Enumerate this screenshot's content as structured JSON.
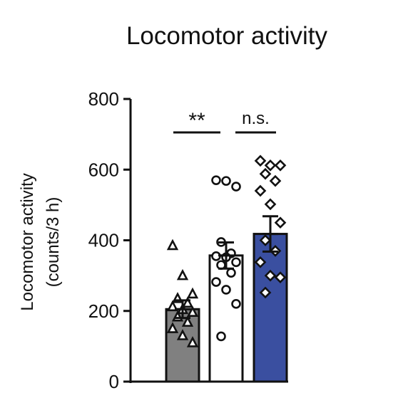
{
  "chart_data": {
    "type": "bar",
    "title": "Locomotor activity",
    "ylabel_line1": "Locomotor activity",
    "ylabel_line2": "(counts/3 h)",
    "ylim": [
      0,
      800
    ],
    "yticks": [
      0,
      200,
      400,
      600,
      800
    ],
    "ytick_labels": [
      "0",
      "200",
      "400",
      "600",
      "800"
    ],
    "grid": false,
    "legend": "none",
    "categories": [
      "",
      "",
      ""
    ],
    "series": [
      {
        "values": [
          205,
          357,
          418
        ],
        "sem": [
          25,
          37,
          50
        ],
        "fill_colors": [
          "#808080",
          "#ffffff",
          "#3a4fa0"
        ],
        "markers": [
          "triangle",
          "circle",
          "diamond"
        ]
      }
    ],
    "points": [
      [
        385,
        300,
        248,
        235,
        222,
        212,
        204,
        196,
        183,
        168,
        150,
        130,
        110
      ],
      [
        570,
        568,
        552,
        395,
        363,
        355,
        352,
        338,
        330,
        308,
        282,
        260,
        220,
        128
      ],
      [
        625,
        612,
        612,
        588,
        568,
        540,
        502,
        450,
        400,
        370,
        338,
        300,
        295,
        252
      ]
    ],
    "significance": [
      {
        "label": "**",
        "between": [
          0,
          1
        ]
      },
      {
        "label": "n.s.",
        "between": [
          1,
          2
        ]
      }
    ]
  }
}
